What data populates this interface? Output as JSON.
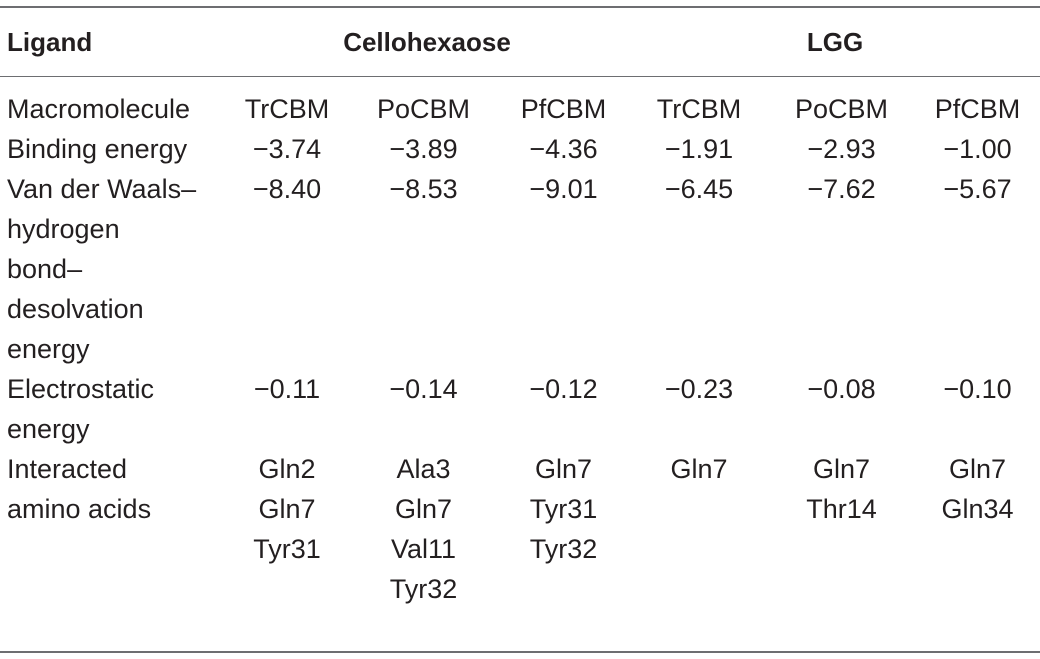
{
  "header": {
    "ligand_label": "Ligand",
    "group1": "Cellohexaose",
    "group2": "LGG"
  },
  "rows": [
    {
      "label": [
        "Macromolecule"
      ],
      "cells": [
        [
          "TrCBM"
        ],
        [
          "PoCBM"
        ],
        [
          "PfCBM"
        ],
        [
          "TrCBM"
        ],
        [
          "PoCBM"
        ],
        [
          "PfCBM"
        ]
      ]
    },
    {
      "label": [
        "Binding energy"
      ],
      "cells": [
        [
          "−3.74"
        ],
        [
          "−3.89"
        ],
        [
          "−4.36"
        ],
        [
          "−1.91"
        ],
        [
          "−2.93"
        ],
        [
          "−1.00"
        ]
      ]
    },
    {
      "label": [
        "Van der Waals–",
        "hydrogen",
        "bond–",
        "desolvation",
        "energy"
      ],
      "cells": [
        [
          "−8.40"
        ],
        [
          "−8.53"
        ],
        [
          "−9.01"
        ],
        [
          "−6.45"
        ],
        [
          "−7.62"
        ],
        [
          "−5.67"
        ]
      ]
    },
    {
      "label": [
        "Electrostatic",
        "energy"
      ],
      "cells": [
        [
          "−0.11"
        ],
        [
          "−0.14"
        ],
        [
          "−0.12"
        ],
        [
          "−0.23"
        ],
        [
          "−0.08"
        ],
        [
          "−0.10"
        ]
      ]
    },
    {
      "label": [
        "Interacted",
        "amino acids"
      ],
      "cells": [
        [
          "Gln2",
          "Gln7",
          "Tyr31"
        ],
        [
          "Ala3",
          "Gln7",
          "Val11",
          "Tyr32"
        ],
        [
          "Gln7",
          "Tyr31",
          "Tyr32"
        ],
        [
          "Gln7"
        ],
        [
          "Gln7",
          "Thr14"
        ],
        [
          "Gln7",
          "Gln34"
        ]
      ]
    }
  ]
}
